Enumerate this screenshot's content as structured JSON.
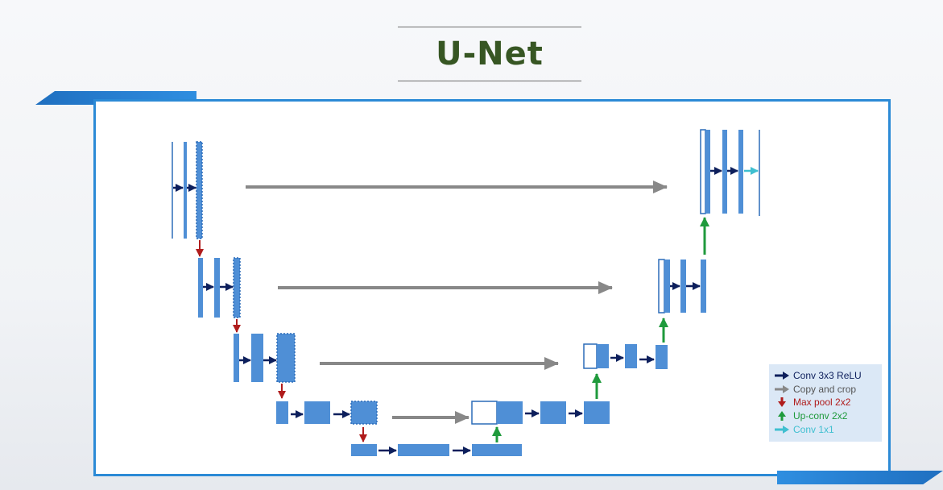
{
  "title": "U-Net",
  "legend": [
    {
      "label": "Conv 3x3 ReLU",
      "color": "#0d1f5c",
      "icon": "arrow-right-icon"
    },
    {
      "label": "Copy and crop",
      "color": "#888888",
      "icon": "arrow-right-icon"
    },
    {
      "label": "Max pool 2x2",
      "color": "#b01c1c",
      "icon": "arrow-down-icon"
    },
    {
      "label": "Up-conv 2x2",
      "color": "#1f9a3c",
      "icon": "arrow-up-icon"
    },
    {
      "label": "Conv 1x1",
      "color": "#3fbfd0",
      "icon": "arrow-right-icon"
    }
  ],
  "colors": {
    "block": "#4f8fd6",
    "block_border": "#2c6cb8",
    "frame": "#2b8ad6",
    "title": "#375623"
  }
}
